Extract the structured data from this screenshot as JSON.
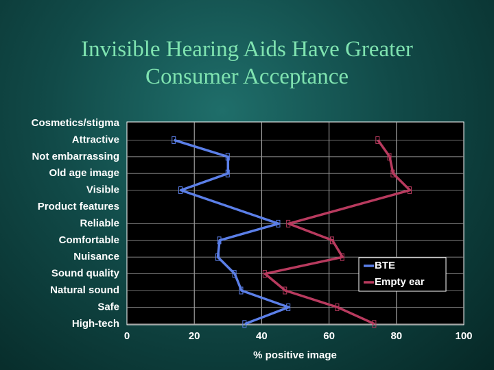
{
  "chart_data": {
    "type": "line",
    "orientation": "horizontal",
    "title": "Invisible Hearing Aids Have Greater Consumer Acceptance",
    "groups": [
      {
        "name": "Cosmetics/stigma",
        "categories": [
          "Attractive",
          "Not embarrassing",
          "Old age image",
          "Visible"
        ]
      },
      {
        "name": "Product features",
        "categories": [
          "Reliable",
          "Comfortable",
          "Nuisance",
          "Sound quality",
          "Natural sound",
          "Safe",
          "High-tech"
        ]
      }
    ],
    "series": [
      {
        "name": "BTE",
        "color": "#5b7fe8",
        "values": [
          14,
          30,
          30,
          16,
          45,
          27.5,
          27,
          32,
          34,
          48,
          35
        ]
      },
      {
        "name": "Empty ear",
        "color": "#b83a5e",
        "values": [
          74.5,
          78,
          79,
          84,
          48,
          61,
          64,
          41,
          47,
          62.5,
          73.5
        ]
      }
    ],
    "xlabel": "% positive image",
    "xlim": [
      0,
      100
    ],
    "xticks": [
      0,
      20,
      40,
      60,
      80,
      100
    ],
    "grid": true
  }
}
